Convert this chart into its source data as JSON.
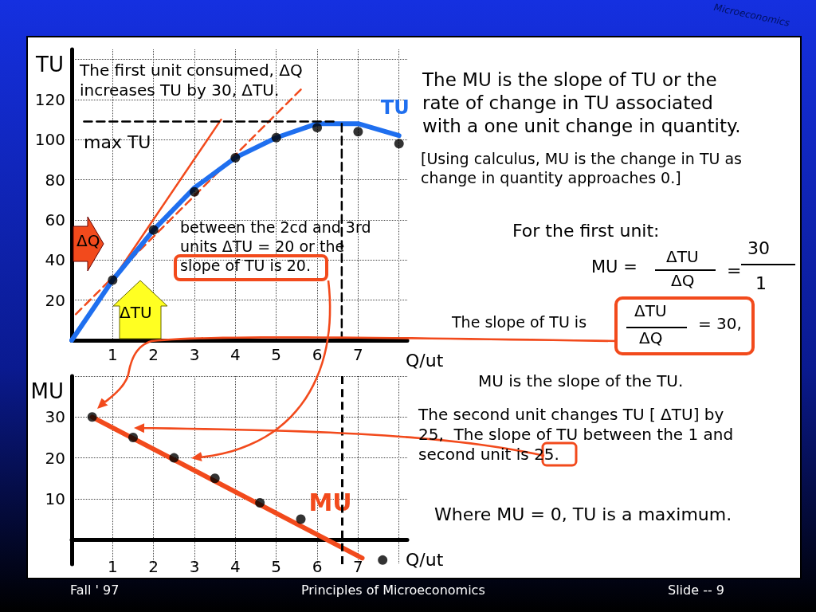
{
  "chart_data": [
    {
      "type": "line",
      "ylabel": "TU",
      "xlabel": "Q/ut",
      "xlim": [
        0,
        8.2
      ],
      "xticks": [
        1,
        2,
        3,
        4,
        5,
        6,
        7,
        {
          "value": 8,
          "label": null
        }
      ],
      "ylim": [
        0,
        145
      ],
      "yticks": [
        20,
        40,
        60,
        80,
        100,
        120,
        {
          "value": 140,
          "label": null
        }
      ],
      "grid": true,
      "legend": false,
      "series": [
        {
          "name": "TU",
          "type": "line",
          "color": "#1f6fef",
          "marker": "none",
          "x": [
            0,
            1,
            2,
            3,
            4,
            5,
            6,
            7,
            8
          ],
          "values": [
            0,
            30,
            55,
            76,
            91,
            101,
            108,
            108,
            102
          ]
        },
        {
          "type": "line",
          "color": "#f24a1c",
          "marker": "none",
          "x": [
            0,
            3.65
          ],
          "values": [
            0,
            110
          ]
        },
        {
          "type": "line",
          "color": "#f24a1c",
          "marker": "none",
          "line_style": "dashed",
          "x": [
            0.1,
            5.6
          ],
          "values": [
            13,
            125
          ]
        },
        {
          "type": "line",
          "color": "#000000",
          "marker": "none",
          "line_style": "dashed",
          "x": [
            0.3,
            6.4
          ],
          "values": [
            109,
            109
          ]
        },
        {
          "type": "line",
          "color": "#000000",
          "marker": "none",
          "line_style": "dashed",
          "x": [
            6.6,
            6.6
          ],
          "values": [
            108,
            0
          ]
        },
        {
          "type": "scatter",
          "color": "#000000",
          "marker": "circle",
          "x": [
            1,
            2,
            3,
            4,
            5,
            6,
            7,
            8
          ],
          "values": [
            30,
            55,
            74,
            91,
            101,
            106,
            104,
            98
          ]
        }
      ],
      "annotations": [
        "The first unit consumed, ΔQ increases TU by 30, ΔTU.",
        "max TU",
        "between the 2cd and 3rd units ΔTU = 20 or the slope of TU is 20.",
        "ΔQ",
        "ΔTU"
      ]
    },
    {
      "type": "line",
      "ylabel": "MU",
      "xlabel": "Q/ut",
      "xlim": [
        0,
        8.2
      ],
      "xticks": [
        1,
        2,
        3,
        4,
        5,
        6,
        7,
        {
          "value": 8,
          "label": null
        }
      ],
      "ylim": [
        -6,
        40
      ],
      "yticks": [
        10,
        20,
        30,
        {
          "value": 40,
          "label": null
        }
      ],
      "grid": true,
      "legend": false,
      "series": [
        {
          "name": "MU",
          "type": "line",
          "color": "#f24a1c",
          "marker": "none",
          "x": [
            0.5,
            7.1
          ],
          "values": [
            30,
            -4.5
          ]
        },
        {
          "type": "scatter",
          "color": "#000000",
          "marker": "circle",
          "x": [
            0.5,
            1.5,
            2.5,
            3.5,
            4.6,
            5.6,
            7.6
          ],
          "values": [
            30,
            25,
            20,
            15,
            9,
            5,
            -5
          ]
        }
      ],
      "ref_lines": [
        {
          "axis": "x",
          "value": 6.6,
          "color": "#000000",
          "line_style": "dashed"
        }
      ]
    },
    {
      "type": "other",
      "annotations": [
        "The MU is the slope of TU or the rate of change in TU associated with a one unit change in quantity.",
        "[Using calculus, MU is the change in TU as change in quantity approaches 0.]",
        "For the first unit:",
        "MU =",
        "ΔTU",
        "ΔQ",
        "=",
        "30",
        "1",
        "The slope of TU is",
        "ΔTU",
        "ΔQ",
        "= 30,",
        "MU is the slope of the TU.",
        "The second unit changes TU [ ΔTU] by 25,  The slope of TU between the 1 and second unit is 25.",
        "Where MU = 0, TU is a maximum.",
        "Fall ' 97",
        "Principles of Microeconomics",
        "Slide -- 9",
        "Microeconomics"
      ]
    }
  ]
}
